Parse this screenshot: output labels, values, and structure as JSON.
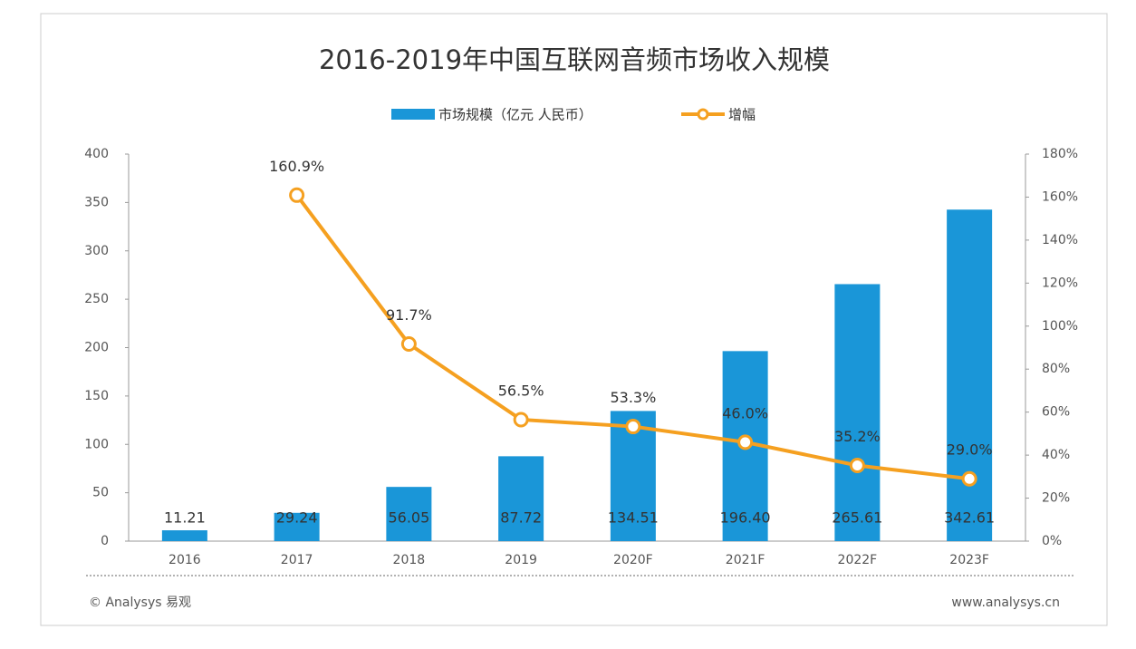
{
  "chart_data": {
    "type": "combo",
    "title": "2016-2019年中国互联网音频市场收入规模",
    "categories": [
      "2016",
      "2017",
      "2018",
      "2019",
      "2020F",
      "2021F",
      "2022F",
      "2023F"
    ],
    "series": [
      {
        "name": "市场规模（亿元 人民币）",
        "type": "bar",
        "color": "#1a96d8",
        "values": [
          11.21,
          29.24,
          56.05,
          87.72,
          134.51,
          196.4,
          265.61,
          342.61
        ],
        "value_labels": [
          "11.21",
          "29.24",
          "56.05",
          "87.72",
          "134.51",
          "196.40",
          "265.61",
          "342.61"
        ]
      },
      {
        "name": "增幅",
        "type": "line",
        "axis": "y2",
        "color": "#f5a020",
        "values": [
          null,
          160.9,
          91.7,
          56.5,
          53.3,
          46.0,
          35.2,
          29.0
        ],
        "value_labels": [
          null,
          "160.9%",
          "91.7%",
          "56.5%",
          "53.3%",
          "46.0%",
          "35.2%",
          "29.0%"
        ]
      }
    ],
    "ylim": [
      0,
      400
    ],
    "yticks": [
      0,
      50,
      100,
      150,
      200,
      250,
      300,
      350,
      400
    ],
    "y2lim": [
      0,
      180
    ],
    "y2ticks": [
      {
        "value": 0,
        "label": "0%"
      },
      {
        "value": 20,
        "label": "20%"
      },
      {
        "value": 40,
        "label": "40%"
      },
      {
        "value": 60,
        "label": "60%"
      },
      {
        "value": 80,
        "label": "80%"
      },
      {
        "value": 100,
        "label": "100%"
      },
      {
        "value": 120,
        "label": "120%"
      },
      {
        "value": 140,
        "label": "140%"
      },
      {
        "value": 160,
        "label": "160%"
      },
      {
        "value": 180,
        "label": "180%"
      }
    ],
    "source": "© Analysys 易观",
    "website": "www.analysys.cn"
  }
}
